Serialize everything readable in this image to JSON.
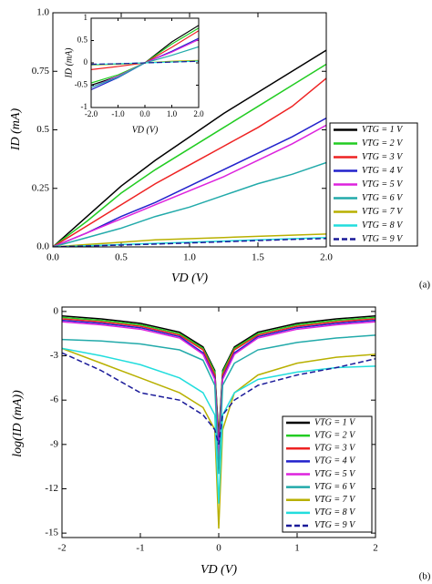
{
  "chart_data": [
    {
      "type": "line",
      "panel_label": "(a)",
      "x_label": "VD (V)",
      "y_label": "ID (mA)",
      "x": [
        0,
        0.25,
        0.5,
        0.75,
        1.0,
        1.25,
        1.5,
        1.75,
        2.0
      ],
      "xlim": [
        0,
        2
      ],
      "ylim": [
        0,
        1
      ],
      "xticks": [
        {
          "value": 0,
          "label": "0.0"
        },
        {
          "value": 0.5,
          "label": "0.5"
        },
        {
          "value": 1,
          "label": "1.0"
        },
        {
          "value": 1.5,
          "label": "1.5"
        },
        {
          "value": 2,
          "label": "2.0"
        }
      ],
      "yticks": [
        {
          "value": 0,
          "label": "0.0"
        },
        0.25,
        0.5,
        0.75,
        {
          "value": 1,
          "label": "1.0"
        }
      ],
      "legend": "right",
      "series": [
        {
          "name": "VTG = 1 V",
          "color": "#000000",
          "values": [
            0,
            0.13,
            0.26,
            0.37,
            0.47,
            0.57,
            0.66,
            0.75,
            0.84
          ]
        },
        {
          "name": "VTG = 2 V",
          "color": "#22cc22",
          "values": [
            0,
            0.11,
            0.23,
            0.33,
            0.42,
            0.51,
            0.6,
            0.69,
            0.78
          ]
        },
        {
          "name": "VTG = 3 V",
          "color": "#ee2222",
          "values": [
            0,
            0.09,
            0.18,
            0.27,
            0.35,
            0.43,
            0.51,
            0.6,
            0.72
          ]
        },
        {
          "name": "VTG = 4 V",
          "color": "#2222cc",
          "values": [
            0,
            0.06,
            0.13,
            0.19,
            0.26,
            0.33,
            0.4,
            0.47,
            0.55
          ]
        },
        {
          "name": "VTG = 5 V",
          "color": "#dd22dd",
          "values": [
            0,
            0.06,
            0.12,
            0.18,
            0.24,
            0.3,
            0.37,
            0.44,
            0.52
          ]
        },
        {
          "name": "VTG = 6 V",
          "color": "#22aaaa",
          "values": [
            0,
            0.04,
            0.08,
            0.13,
            0.17,
            0.22,
            0.27,
            0.31,
            0.36
          ]
        },
        {
          "name": "VTG = 7 V",
          "color": "#b8b000",
          "values": [
            0,
            0.01,
            0.02,
            0.03,
            0.035,
            0.04,
            0.045,
            0.05,
            0.055
          ]
        },
        {
          "name": "VTG = 8 V",
          "color": "#22dddd",
          "values": [
            0,
            0.005,
            0.01,
            0.015,
            0.02,
            0.025,
            0.03,
            0.035,
            0.04
          ]
        },
        {
          "name": "VTG = 9 V",
          "color": "#1a1a99",
          "dash": true,
          "values": [
            0,
            0.004,
            0.008,
            0.012,
            0.017,
            0.022,
            0.027,
            0.032,
            0.036
          ]
        }
      ]
    },
    {
      "type": "line",
      "x_label": "VD (V)",
      "y_label": "ID (mA)",
      "x": [
        -2,
        -1,
        0,
        1,
        2
      ],
      "xlim": [
        -2,
        2
      ],
      "ylim": [
        -1,
        1
      ],
      "xticks": [
        {
          "value": -2,
          "label": "-2.0"
        },
        {
          "value": -1,
          "label": "-1.0"
        },
        {
          "value": 0,
          "label": "0.0"
        },
        {
          "value": 1,
          "label": "1.0"
        },
        {
          "value": 2,
          "label": "2.0"
        }
      ],
      "yticks": [
        -1,
        -0.5,
        0,
        0.5,
        1
      ],
      "series": [
        {
          "color": "#000000",
          "values": [
            -0.5,
            -0.3,
            0,
            0.47,
            0.84
          ]
        },
        {
          "color": "#22cc22",
          "values": [
            -0.45,
            -0.27,
            0,
            0.42,
            0.78
          ]
        },
        {
          "color": "#ee2222",
          "values": [
            -0.15,
            -0.08,
            0,
            0.35,
            0.72
          ]
        },
        {
          "color": "#2222cc",
          "values": [
            -0.6,
            -0.33,
            0,
            0.26,
            0.55
          ]
        },
        {
          "color": "#dd22dd",
          "values": [
            -0.55,
            -0.3,
            0,
            0.24,
            0.52
          ]
        },
        {
          "color": "#22aaaa",
          "values": [
            -0.55,
            -0.32,
            0,
            0.17,
            0.36
          ]
        },
        {
          "color": "#b8b000",
          "values": [
            -0.05,
            -0.03,
            0,
            0.035,
            0.055
          ]
        },
        {
          "color": "#22dddd",
          "values": [
            -0.04,
            -0.02,
            0,
            0.02,
            0.04
          ]
        },
        {
          "color": "#1a1a99",
          "dash": true,
          "values": [
            -0.03,
            -0.02,
            0,
            0.017,
            0.036
          ]
        }
      ]
    },
    {
      "type": "line",
      "panel_label": "(b)",
      "x_label": "VD (V)",
      "y_label": "log(ID (mA))",
      "x": [
        -2,
        -1.5,
        -1,
        -0.5,
        -0.2,
        -0.05,
        0,
        0.05,
        0.2,
        0.5,
        1,
        1.5,
        2
      ],
      "xlim": [
        -2,
        2
      ],
      "ylim": [
        -15.3,
        0.3
      ],
      "xticks": [
        -2,
        -1,
        0,
        1,
        2
      ],
      "yticks": [
        0,
        -3,
        -6,
        -9,
        -12,
        -15
      ],
      "legend": "lower right",
      "series": [
        {
          "name": "VTG = 1 V",
          "color": "#000000",
          "values": [
            -0.3,
            -0.5,
            -0.8,
            -1.4,
            -2.4,
            -4,
            -8.5,
            -4,
            -2.4,
            -1.4,
            -0.8,
            -0.5,
            -0.3
          ]
        },
        {
          "name": "VTG = 2 V",
          "color": "#22cc22",
          "values": [
            -0.4,
            -0.6,
            -0.9,
            -1.5,
            -2.5,
            -4.1,
            -8.8,
            -4.1,
            -2.5,
            -1.5,
            -0.9,
            -0.6,
            -0.4
          ]
        },
        {
          "name": "VTG = 3 V",
          "color": "#ee2222",
          "values": [
            -0.5,
            -0.7,
            -1.0,
            -1.6,
            -2.6,
            -4.3,
            -9,
            -4.3,
            -2.6,
            -1.6,
            -1.0,
            -0.7,
            -0.5
          ]
        },
        {
          "name": "VTG = 4 V",
          "color": "#2222cc",
          "values": [
            -0.6,
            -0.8,
            -1.1,
            -1.7,
            -2.8,
            -4.5,
            -9.5,
            -4.5,
            -2.8,
            -1.7,
            -1.1,
            -0.8,
            -0.6
          ]
        },
        {
          "name": "VTG = 5 V",
          "color": "#dd22dd",
          "values": [
            -0.7,
            -0.9,
            -1.2,
            -1.8,
            -2.9,
            -4.6,
            -10,
            -4.6,
            -2.9,
            -1.8,
            -1.2,
            -0.9,
            -0.7
          ]
        },
        {
          "name": "VTG = 6 V",
          "color": "#22aaaa",
          "values": [
            -1.9,
            -2.0,
            -2.2,
            -2.6,
            -3.3,
            -5,
            -11,
            -5,
            -3.5,
            -2.6,
            -2.1,
            -1.8,
            -1.6
          ]
        },
        {
          "name": "VTG = 7 V",
          "color": "#b8b000",
          "values": [
            -2.5,
            -3.5,
            -4.5,
            -5.5,
            -6.5,
            -8,
            -14.7,
            -8,
            -5.5,
            -4.3,
            -3.5,
            -3.1,
            -2.9
          ]
        },
        {
          "name": "VTG = 8 V",
          "color": "#22dddd",
          "values": [
            -2.5,
            -3.0,
            -3.6,
            -4.5,
            -5.5,
            -7,
            -13,
            -7,
            -5.5,
            -4.6,
            -4.1,
            -3.8,
            -3.7
          ]
        },
        {
          "name": "VTG = 9 V",
          "color": "#1a1a99",
          "dash": true,
          "values": [
            -2.8,
            -4,
            -5.5,
            -6,
            -7,
            -8,
            -9,
            -7,
            -6,
            -5,
            -4.3,
            -3.8,
            -3.2
          ]
        }
      ]
    }
  ]
}
